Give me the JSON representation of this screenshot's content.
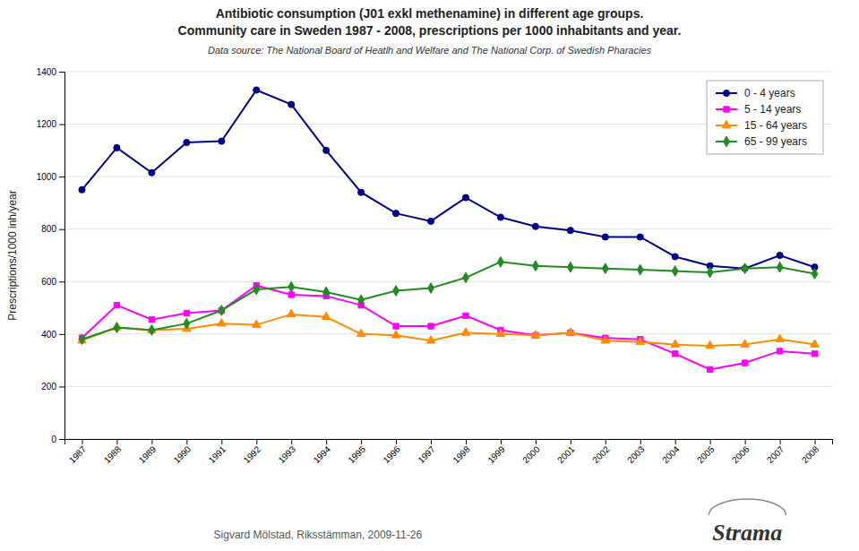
{
  "chart_data": {
    "type": "line",
    "title": [
      "Antibiotic consumption (J01 exkl methenamine) in different age groups.",
      "Community care in Sweden 1987 - 2008, prescriptions per 1000 inhabitants and year."
    ],
    "subtitle": "Data source: The National Board of Heatlh and Welfare and The National Corp. of Swedish Pharacies",
    "y_label": "Prescriptions/1000 inh/year",
    "annotations": [
      "Sigvard Mölstad, Riksstämman, 2009-11-26",
      "Strama"
    ],
    "x": [
      1987,
      1988,
      1989,
      1990,
      1991,
      1992,
      1993,
      1994,
      1995,
      1996,
      1997,
      1998,
      1999,
      2000,
      2001,
      2002,
      2003,
      2004,
      2005,
      2006,
      2007,
      2008
    ],
    "xlim": [
      1986.5,
      2008.5
    ],
    "xticks": [
      1987,
      1988,
      1989,
      1990,
      1991,
      1992,
      1993,
      1994,
      1995,
      1996,
      1997,
      1998,
      1999,
      2000,
      2001,
      2002,
      2003,
      2004,
      2005,
      2006,
      2007,
      2008
    ],
    "ylim": [
      0,
      1400
    ],
    "yticks": [
      0,
      200,
      400,
      600,
      800,
      1000,
      1200,
      1400
    ],
    "grid": true,
    "legend": "upper-right",
    "series": [
      {
        "name": "0 - 4 years",
        "color": "#00008B",
        "marker": "circle",
        "values": [
          950,
          1110,
          1015,
          1130,
          1135,
          1330,
          1275,
          1100,
          940,
          860,
          830,
          920,
          845,
          810,
          795,
          770,
          770,
          695,
          660,
          650,
          700,
          655
        ]
      },
      {
        "name": "5 - 14 years",
        "color": "#FF00FF",
        "marker": "square",
        "values": [
          385,
          510,
          455,
          480,
          490,
          585,
          550,
          545,
          510,
          430,
          430,
          470,
          415,
          395,
          405,
          385,
          380,
          325,
          265,
          290,
          335,
          325
        ]
      },
      {
        "name": "15 - 64 years",
        "color": "#FF8C00",
        "marker": "triangle",
        "values": [
          375,
          425,
          415,
          420,
          440,
          435,
          475,
          465,
          400,
          395,
          375,
          405,
          400,
          395,
          405,
          375,
          370,
          360,
          355,
          360,
          380,
          360
        ]
      },
      {
        "name": "65 - 99 years",
        "color": "#228B22",
        "marker": "diamond",
        "values": [
          380,
          425,
          415,
          440,
          490,
          570,
          580,
          560,
          530,
          565,
          575,
          615,
          675,
          660,
          655,
          650,
          645,
          640,
          635,
          650,
          655,
          630
        ]
      }
    ]
  }
}
